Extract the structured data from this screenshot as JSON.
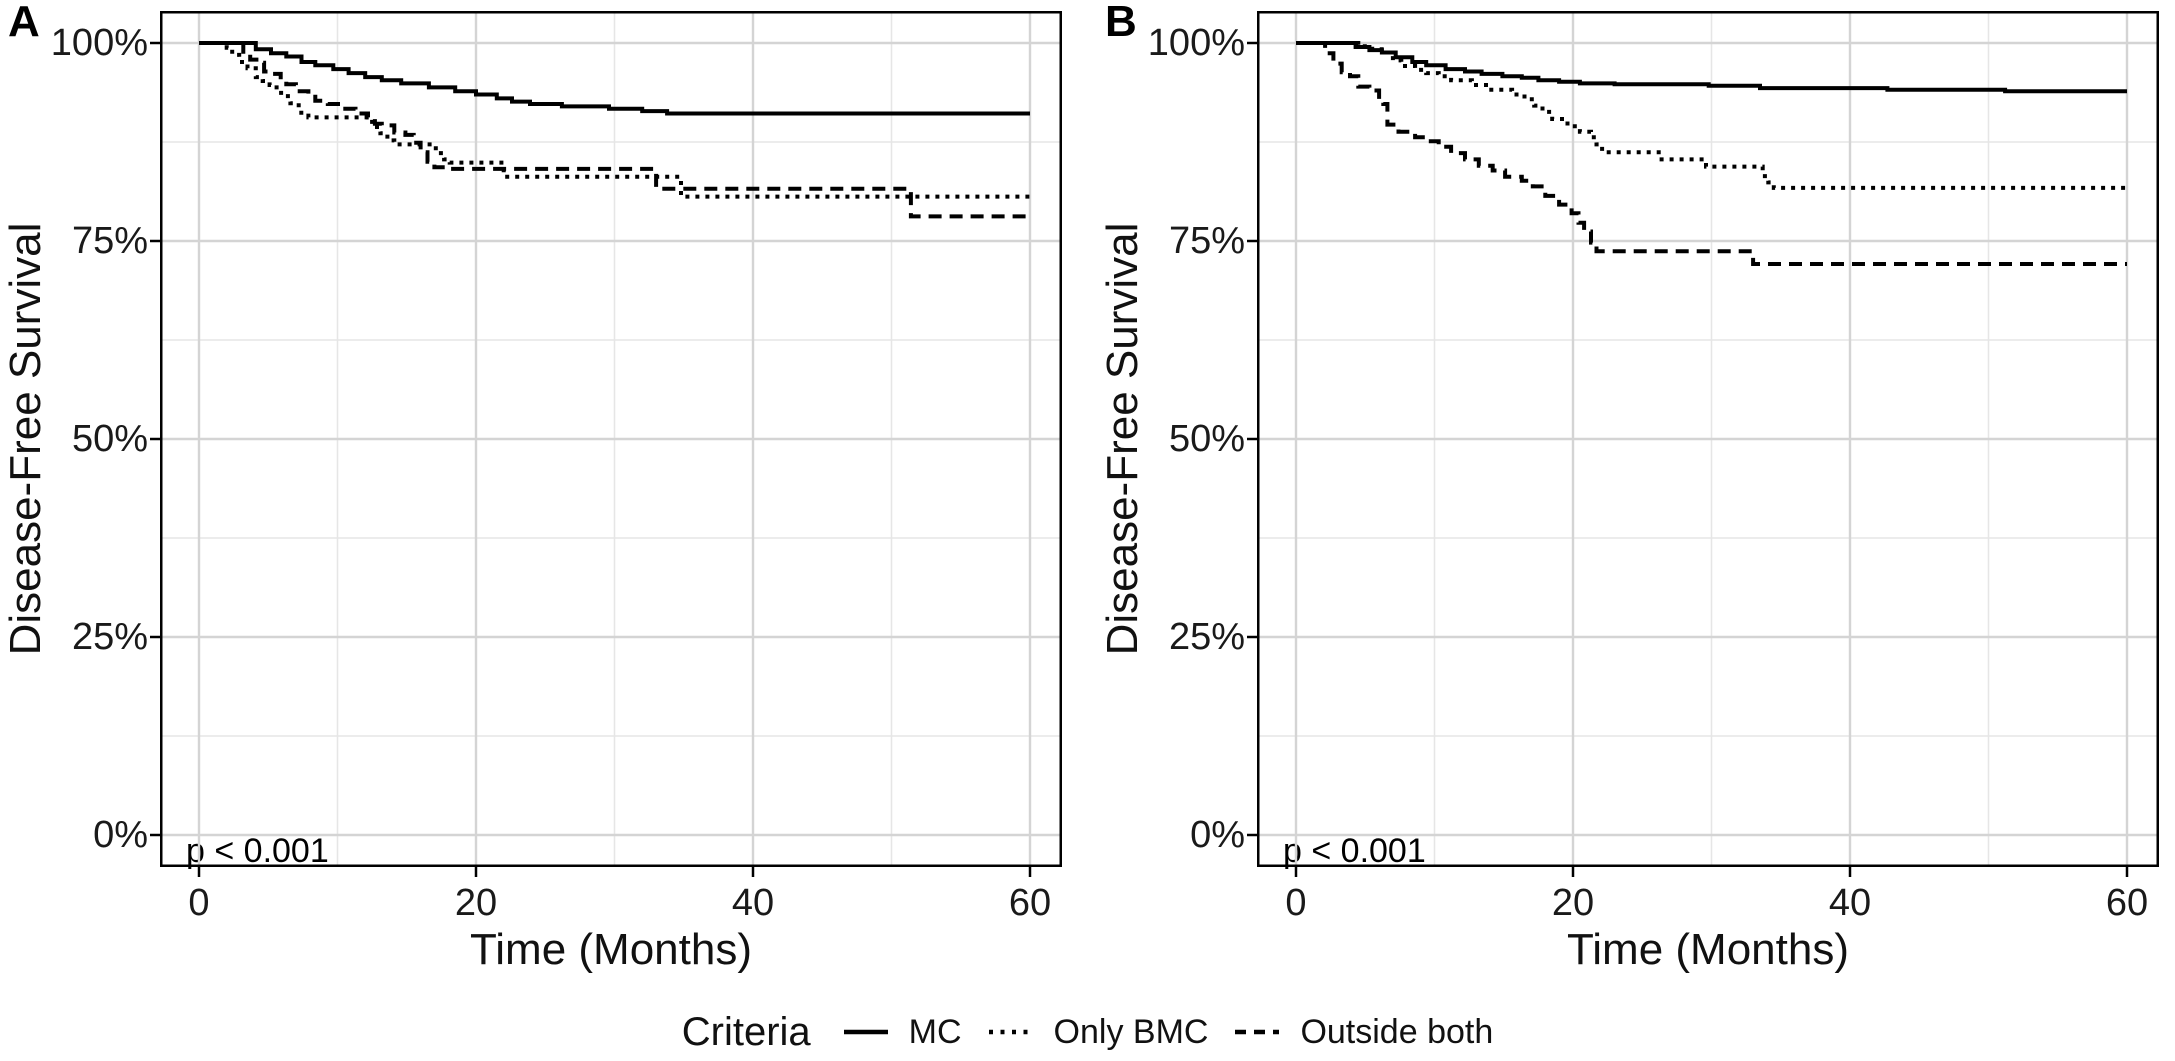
{
  "figure": {
    "background": "#ffffff",
    "curve_color": "#000000",
    "grid_major_color": "#d4d4d4",
    "grid_minor_color": "#e6e6e6",
    "border_color": "#000000",
    "text_color": "#111111"
  },
  "legend": {
    "title": "Criteria",
    "items": [
      {
        "label": "MC",
        "linestyle": "solid"
      },
      {
        "label": "Only BMC",
        "linestyle": "dotted"
      },
      {
        "label": "Outside both",
        "linestyle": "dashed"
      }
    ]
  },
  "chart_data": [
    {
      "type": "line",
      "subtype": "kaplan-meier-step",
      "panel_label": "A",
      "xlabel": "Time (Months)",
      "ylabel": "Disease-Free Survival",
      "annotation": "p < 0.001",
      "xlim": [
        0,
        60
      ],
      "ylim": [
        0,
        100
      ],
      "grid": true,
      "x_ticks": [
        {
          "v": 0,
          "label": "0"
        },
        {
          "v": 20,
          "label": "20"
        },
        {
          "v": 40,
          "label": "40"
        },
        {
          "v": 60,
          "label": "60"
        }
      ],
      "x_minor": [
        10,
        30,
        50
      ],
      "y_ticks": [
        {
          "v": 100,
          "label": "100%"
        },
        {
          "v": 75,
          "label": "75%"
        },
        {
          "v": 50,
          "label": "50%"
        },
        {
          "v": 25,
          "label": "25%"
        },
        {
          "v": 0,
          "label": "0%"
        }
      ],
      "y_minor": [
        12.5,
        37.5,
        62.5,
        87.5
      ],
      "series": [
        {
          "name": "MC",
          "linestyle": "solid",
          "points": [
            [
              0,
              100
            ],
            [
              3.4,
              100
            ],
            [
              4.1,
              99.2
            ],
            [
              5.2,
              98.7
            ],
            [
              6.3,
              98.3
            ],
            [
              7.4,
              97.6
            ],
            [
              8.4,
              97.2
            ],
            [
              9.7,
              96.7
            ],
            [
              10.8,
              96.2
            ],
            [
              12,
              95.7
            ],
            [
              13.2,
              95.3
            ],
            [
              14.6,
              94.9
            ],
            [
              16.6,
              94.4
            ],
            [
              18.5,
              93.9
            ],
            [
              20,
              93.5
            ],
            [
              21.5,
              93
            ],
            [
              22.6,
              92.6
            ],
            [
              23.9,
              92.3
            ],
            [
              26.2,
              92
            ],
            [
              29.6,
              91.7
            ],
            [
              32,
              91.4
            ],
            [
              33.8,
              91.1
            ],
            [
              60,
              91.1
            ]
          ]
        },
        {
          "name": "Only BMC",
          "linestyle": "dotted",
          "points": [
            [
              0,
              100
            ],
            [
              2,
              99.4
            ],
            [
              2.4,
              98.5
            ],
            [
              2.9,
              97.6
            ],
            [
              3.5,
              96.8
            ],
            [
              4.1,
              95.7
            ],
            [
              4.6,
              95.2
            ],
            [
              5.1,
              94.7
            ],
            [
              5.6,
              93.7
            ],
            [
              6.1,
              93.3
            ],
            [
              6.6,
              92.4
            ],
            [
              7.2,
              91.2
            ],
            [
              7.9,
              90.6
            ],
            [
              12.5,
              89.4
            ],
            [
              13.1,
              88.6
            ],
            [
              13.6,
              87.7
            ],
            [
              14.1,
              87.2
            ],
            [
              17.1,
              86.1
            ],
            [
              17.7,
              85.3
            ],
            [
              18.1,
              84.9
            ],
            [
              22,
              83.1
            ],
            [
              34.8,
              80.6
            ],
            [
              60,
              80.6
            ]
          ]
        },
        {
          "name": "Outside both",
          "linestyle": "dashed",
          "points": [
            [
              0,
              100
            ],
            [
              3.2,
              98.9
            ],
            [
              3.7,
              97.9
            ],
            [
              4.3,
              97.5
            ],
            [
              4.7,
              96.4
            ],
            [
              5.3,
              96.1
            ],
            [
              5.9,
              95.2
            ],
            [
              6.3,
              94.8
            ],
            [
              7,
              93.9
            ],
            [
              7.9,
              93.5
            ],
            [
              8.4,
              92.7
            ],
            [
              9.3,
              92.3
            ],
            [
              10.3,
              91.7
            ],
            [
              11.3,
              91.1
            ],
            [
              12.2,
              90.6
            ],
            [
              12.7,
              89.8
            ],
            [
              13.2,
              89.6
            ],
            [
              14.1,
              88.7
            ],
            [
              14.9,
              88.4
            ],
            [
              15.5,
              87.4
            ],
            [
              16,
              86.2
            ],
            [
              16.5,
              85
            ],
            [
              17,
              84.3
            ],
            [
              17.8,
              84.1
            ],
            [
              33,
              81.6
            ],
            [
              51.4,
              78.1
            ],
            [
              60,
              78.1
            ]
          ]
        }
      ]
    },
    {
      "type": "line",
      "subtype": "kaplan-meier-step",
      "panel_label": "B",
      "xlabel": "Time (Months)",
      "ylabel": "Disease-Free Survival",
      "annotation": "p < 0.001",
      "xlim": [
        0,
        60
      ],
      "ylim": [
        0,
        100
      ],
      "grid": true,
      "x_ticks": [
        {
          "v": 0,
          "label": "0"
        },
        {
          "v": 20,
          "label": "20"
        },
        {
          "v": 40,
          "label": "40"
        },
        {
          "v": 60,
          "label": "60"
        }
      ],
      "x_minor": [
        10,
        30,
        50
      ],
      "y_ticks": [
        {
          "v": 100,
          "label": "100%"
        },
        {
          "v": 75,
          "label": "75%"
        },
        {
          "v": 50,
          "label": "50%"
        },
        {
          "v": 25,
          "label": "25%"
        },
        {
          "v": 0,
          "label": "0%"
        }
      ],
      "y_minor": [
        12.5,
        37.5,
        62.5,
        87.5
      ],
      "series": [
        {
          "name": "MC",
          "linestyle": "solid",
          "points": [
            [
              0,
              100
            ],
            [
              4.3,
              99.5
            ],
            [
              5.3,
              99.1
            ],
            [
              6.2,
              98.8
            ],
            [
              7.2,
              98.2
            ],
            [
              8.4,
              97.6
            ],
            [
              9.4,
              97.2
            ],
            [
              10.8,
              96.7
            ],
            [
              12.2,
              96.4
            ],
            [
              13.4,
              96.1
            ],
            [
              14.9,
              95.8
            ],
            [
              16.3,
              95.6
            ],
            [
              17.5,
              95.3
            ],
            [
              19,
              95.1
            ],
            [
              20.5,
              94.9
            ],
            [
              23,
              94.8
            ],
            [
              29.8,
              94.6
            ],
            [
              33.5,
              94.3
            ],
            [
              42.7,
              94.1
            ],
            [
              51.2,
              93.9
            ],
            [
              60,
              93.9
            ]
          ]
        },
        {
          "name": "Only BMC",
          "linestyle": "dotted",
          "points": [
            [
              0,
              100
            ],
            [
              4.5,
              99.6
            ],
            [
              5.5,
              99.2
            ],
            [
              6.4,
              98.8
            ],
            [
              7,
              97.8
            ],
            [
              7.6,
              97.1
            ],
            [
              8.6,
              96.6
            ],
            [
              9.4,
              96.2
            ],
            [
              10.3,
              95.8
            ],
            [
              11.2,
              95.3
            ],
            [
              12.7,
              94.7
            ],
            [
              14.1,
              94.1
            ],
            [
              15.6,
              93.5
            ],
            [
              16.5,
              92.9
            ],
            [
              17.2,
              92.1
            ],
            [
              17.8,
              91.3
            ],
            [
              18.5,
              90.4
            ],
            [
              19.6,
              89.5
            ],
            [
              20.5,
              88.8
            ],
            [
              21.3,
              88.1
            ],
            [
              21.7,
              87.2
            ],
            [
              22.1,
              86.2
            ],
            [
              26.4,
              85.3
            ],
            [
              29.6,
              84.4
            ],
            [
              33.7,
              83.2
            ],
            [
              34.1,
              82.4
            ],
            [
              34.5,
              81.7
            ],
            [
              60,
              81.7
            ]
          ]
        },
        {
          "name": "Outside both",
          "linestyle": "dashed",
          "points": [
            [
              0,
              100
            ],
            [
              2.1,
              98.7
            ],
            [
              2.7,
              97.4
            ],
            [
              3.3,
              96.3
            ],
            [
              3.9,
              95.8
            ],
            [
              4.5,
              94.5
            ],
            [
              5.3,
              94
            ],
            [
              6,
              92.8
            ],
            [
              6.3,
              92.3
            ],
            [
              6.6,
              89.7
            ],
            [
              7.4,
              88.8
            ],
            [
              8.6,
              88.1
            ],
            [
              9.4,
              87.6
            ],
            [
              10.3,
              86.9
            ],
            [
              11.2,
              86.1
            ],
            [
              12.2,
              85.3
            ],
            [
              13.2,
              84.5
            ],
            [
              14.2,
              83.9
            ],
            [
              15.1,
              83.1
            ],
            [
              16.3,
              82.6
            ],
            [
              17.1,
              81.9
            ],
            [
              18,
              80.7
            ],
            [
              19,
              79.6
            ],
            [
              19.9,
              78.5
            ],
            [
              20.4,
              77.3
            ],
            [
              20.8,
              76.2
            ],
            [
              21.3,
              74.8
            ],
            [
              21.7,
              73.7
            ],
            [
              33,
              72.1
            ],
            [
              60,
              72.1
            ]
          ]
        }
      ]
    }
  ]
}
